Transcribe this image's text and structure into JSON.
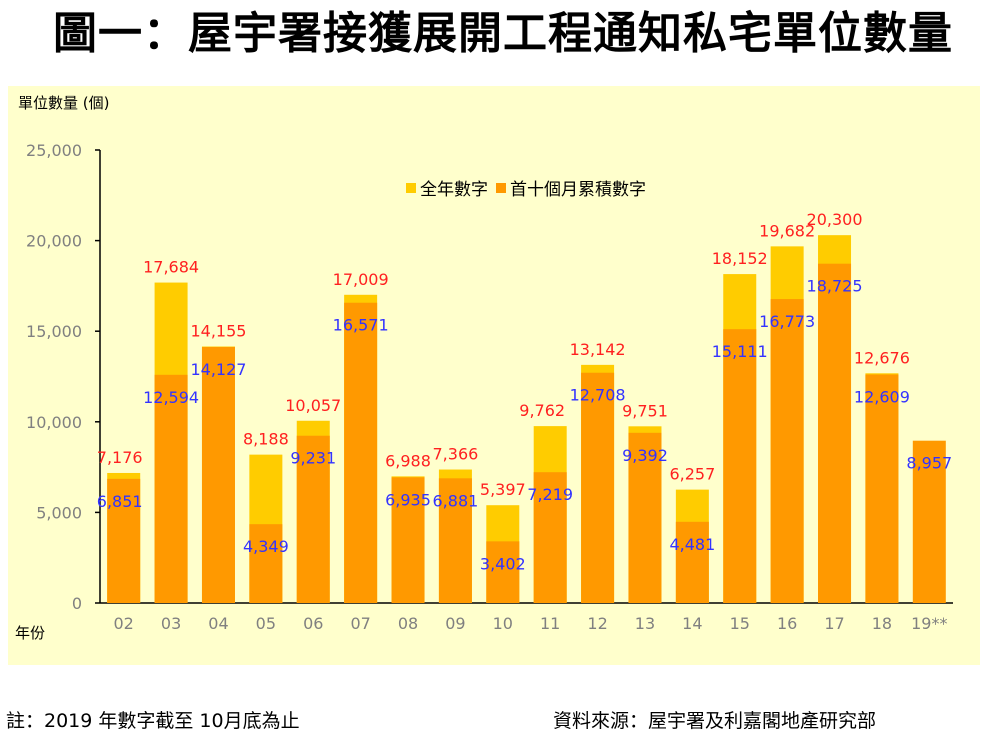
{
  "title": "圖一：屋宇署接獲展開工程通知私宅單位數量",
  "footer": {
    "note": "註：2019 年數字截至 10月底為止",
    "source": "資料來源：屋宇署及利嘉閣地產研究部"
  },
  "colors": {
    "background": "#ffffcc",
    "full_year": "#ffcc00",
    "first_ten_months": "#ff9900",
    "total_label": "#ff2020",
    "cumulative_label": "#3333ff",
    "tick_label": "#808080"
  },
  "chart_data": {
    "type": "bar",
    "stacked": "overlay",
    "title": "圖一：屋宇署接獲展開工程通知私宅單位數量",
    "ylabel": "單位數量 (個)",
    "xlabel": "年份",
    "ylim": [
      0,
      25000
    ],
    "yticks": [
      0,
      5000,
      10000,
      15000,
      20000,
      25000
    ],
    "ytick_labels": [
      "0",
      "5,000",
      "10,000",
      "15,000",
      "20,000",
      "25,000"
    ],
    "grid": false,
    "legend": {
      "placement": "top-center",
      "entries": [
        "全年數字",
        "首十個月累積數字"
      ]
    },
    "categories": [
      "02",
      "03",
      "04",
      "05",
      "06",
      "07",
      "08",
      "09",
      "10",
      "11",
      "12",
      "13",
      "14",
      "15",
      "16",
      "17",
      "18",
      "19**"
    ],
    "series": [
      {
        "name": "全年數字",
        "values": [
          7176,
          17684,
          14155,
          8188,
          10057,
          17009,
          6988,
          7366,
          5397,
          9762,
          13142,
          9751,
          6257,
          18152,
          19682,
          20300,
          12676,
          null
        ],
        "labels": [
          "7,176",
          "17,684",
          "14,155",
          "8,188",
          "10,057",
          "17,009",
          "6,988",
          "7,366",
          "5,397",
          "9,762",
          "13,142",
          "9,751",
          "6,257",
          "18,152",
          "19,682",
          "20,300",
          "12,676",
          ""
        ]
      },
      {
        "name": "首十個月累積數字",
        "values": [
          6851,
          12594,
          14127,
          4349,
          9231,
          16571,
          6935,
          6881,
          3402,
          7219,
          12708,
          9392,
          4481,
          15111,
          16773,
          18725,
          12609,
          8957
        ],
        "labels": [
          "6,851",
          "12,594",
          "14,127",
          "4,349",
          "9,231",
          "16,571",
          "6,935",
          "6,881",
          "3,402",
          "7,219",
          "12,708",
          "9,392",
          "4,481",
          "15,111",
          "16,773",
          "18,725",
          "12,609",
          "8,957"
        ]
      }
    ]
  }
}
